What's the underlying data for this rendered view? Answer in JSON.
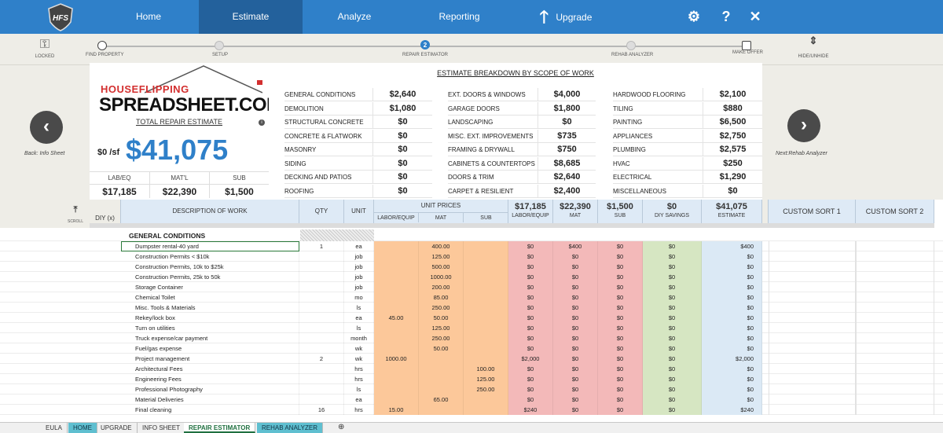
{
  "nav": {
    "home": "Home",
    "estimate": "Estimate",
    "analyze": "Analyze",
    "reporting": "Reporting",
    "upgrade": "Upgrade",
    "logo": "HFS"
  },
  "toolbar": {
    "locked": "LOCKED",
    "hide_unhide": "HIDE/UNHIDE"
  },
  "steps": [
    {
      "label": "FIND PROPERTY"
    },
    {
      "label": "SETUP"
    },
    {
      "label": "REPAIR ESTIMATOR",
      "number": "2"
    },
    {
      "label": "REHAB ANALYZER"
    },
    {
      "label": "MAKE OFFER"
    }
  ],
  "side": {
    "back": "Back: Info Sheet",
    "next": "Next:Rehab Analyzer",
    "scroll": "SCROLL"
  },
  "brand": {
    "top": "HOUSEFLIPPING",
    "main": "SPREADSHEET.COM"
  },
  "summary": {
    "total_label": "TOTAL REPAIR ESTIMATE",
    "per_sf": "$0 /sf",
    "total": "$41,075",
    "heads": [
      "LAB/EQ",
      "MAT'L",
      "SUB"
    ],
    "vals": [
      "$17,185",
      "$22,390",
      "$1,500"
    ]
  },
  "breakdown": {
    "title": "ESTIMATE BREAKDOWN BY SCOPE OF WORK",
    "col1": [
      [
        "GENERAL CONDITIONS",
        "$2,640"
      ],
      [
        "DEMOLITION",
        "$1,080"
      ],
      [
        "STRUCTURAL CONCRETE",
        "$0"
      ],
      [
        "CONCRETE & FLATWORK",
        "$0"
      ],
      [
        "MASONRY",
        "$0"
      ],
      [
        "SIDING",
        "$0"
      ],
      [
        "DECKING AND PATIOS",
        "$0"
      ],
      [
        "ROOFING",
        "$0"
      ]
    ],
    "col2": [
      [
        "EXT. DOORS & WINDOWS",
        "$4,000"
      ],
      [
        "GARAGE DOORS",
        "$1,800"
      ],
      [
        "LANDSCAPING",
        "$0"
      ],
      [
        "MISC. EXT. IMPROVEMENTS",
        "$735"
      ],
      [
        "FRAMING & DRYWALL",
        "$750"
      ],
      [
        "CABINETS & COUNTERTOPS",
        "$8,685"
      ],
      [
        "DOORS & TRIM",
        "$2,640"
      ],
      [
        "CARPET & RESILIENT",
        "$2,400"
      ]
    ],
    "col3": [
      [
        "HARDWOOD FLOORING",
        "$2,100"
      ],
      [
        "TILING",
        "$880"
      ],
      [
        "PAINTING",
        "$6,500"
      ],
      [
        "APPLIANCES",
        "$2,750"
      ],
      [
        "PLUMBING",
        "$2,575"
      ],
      [
        "HVAC",
        "$250"
      ],
      [
        "ELECTRICAL",
        "$1,290"
      ],
      [
        "MISCELLANEOUS",
        "$0"
      ]
    ]
  },
  "table": {
    "headers": {
      "diy": "DIY (x)",
      "desc": "DESCRIPTION OF WORK",
      "qty": "QTY",
      "unit": "UNIT",
      "unit_prices": "UNIT PRICES",
      "labor": "LABOR/EQUIP",
      "mat": "MAT",
      "sub": "SUB",
      "tot_labor": "$17,185",
      "tot_mat": "$22,390",
      "tot_sub": "$1,500",
      "tot_diy": "$0",
      "tot_est": "$41,075",
      "labor2": "LABOR/EQUIP",
      "mat2": "MAT",
      "sub2": "SUB",
      "diy_savings": "DIY SAVINGS",
      "estimate": "ESTIMATE",
      "custom1": "CUSTOM SORT 1",
      "custom2": "CUSTOM SORT 2"
    },
    "section": "GENERAL CONDITIONS",
    "rows": [
      [
        "Dumpster rental-40 yard",
        "1",
        "ea",
        "",
        "400.00",
        "",
        "$0",
        "$400",
        "$0",
        "$0",
        "$400"
      ],
      [
        "Construction Permits < $10k",
        "",
        "job",
        "",
        "125.00",
        "",
        "$0",
        "$0",
        "$0",
        "$0",
        "$0"
      ],
      [
        "Construction Permits, 10k to $25k",
        "",
        "job",
        "",
        "500.00",
        "",
        "$0",
        "$0",
        "$0",
        "$0",
        "$0"
      ],
      [
        "Construction Permits, 25k to 50k",
        "",
        "job",
        "",
        "1000.00",
        "",
        "$0",
        "$0",
        "$0",
        "$0",
        "$0"
      ],
      [
        "Storage Container",
        "",
        "job",
        "",
        "200.00",
        "",
        "$0",
        "$0",
        "$0",
        "$0",
        "$0"
      ],
      [
        "Chemical Toilet",
        "",
        "mo",
        "",
        "85.00",
        "",
        "$0",
        "$0",
        "$0",
        "$0",
        "$0"
      ],
      [
        "Misc. Tools & Materials",
        "",
        "ls",
        "",
        "250.00",
        "",
        "$0",
        "$0",
        "$0",
        "$0",
        "$0"
      ],
      [
        "Rekey/lock box",
        "",
        "ea",
        "45.00",
        "50.00",
        "",
        "$0",
        "$0",
        "$0",
        "$0",
        "$0"
      ],
      [
        "Turn on utilities",
        "",
        "ls",
        "",
        "125.00",
        "",
        "$0",
        "$0",
        "$0",
        "$0",
        "$0"
      ],
      [
        "Truck expense/car payment",
        "",
        "month",
        "",
        "250.00",
        "",
        "$0",
        "$0",
        "$0",
        "$0",
        "$0"
      ],
      [
        "Fuel/gas expense",
        "",
        "wk",
        "",
        "50.00",
        "",
        "$0",
        "$0",
        "$0",
        "$0",
        "$0"
      ],
      [
        "Project management",
        "2",
        "wk",
        "1000.00",
        "",
        "",
        "$2,000",
        "$0",
        "$0",
        "$0",
        "$2,000"
      ],
      [
        "Architectural Fees",
        "",
        "hrs",
        "",
        "",
        "100.00",
        "$0",
        "$0",
        "$0",
        "$0",
        "$0"
      ],
      [
        "Engineering Fees",
        "",
        "hrs",
        "",
        "",
        "125.00",
        "$0",
        "$0",
        "$0",
        "$0",
        "$0"
      ],
      [
        "Professional Photography",
        "",
        "ls",
        "",
        "",
        "250.00",
        "$0",
        "$0",
        "$0",
        "$0",
        "$0"
      ],
      [
        "Material Deliveries",
        "",
        "ea",
        "",
        "65.00",
        "",
        "$0",
        "$0",
        "$0",
        "$0",
        "$0"
      ],
      [
        "Final cleaning",
        "16",
        "hrs",
        "15.00",
        "",
        "",
        "$240",
        "$0",
        "$0",
        "$0",
        "$240"
      ]
    ]
  },
  "sheets": [
    "EULA",
    "HOME",
    "UPGRADE",
    "INFO SHEET",
    "REPAIR ESTIMATOR",
    "REHAB ANALYZER"
  ]
}
